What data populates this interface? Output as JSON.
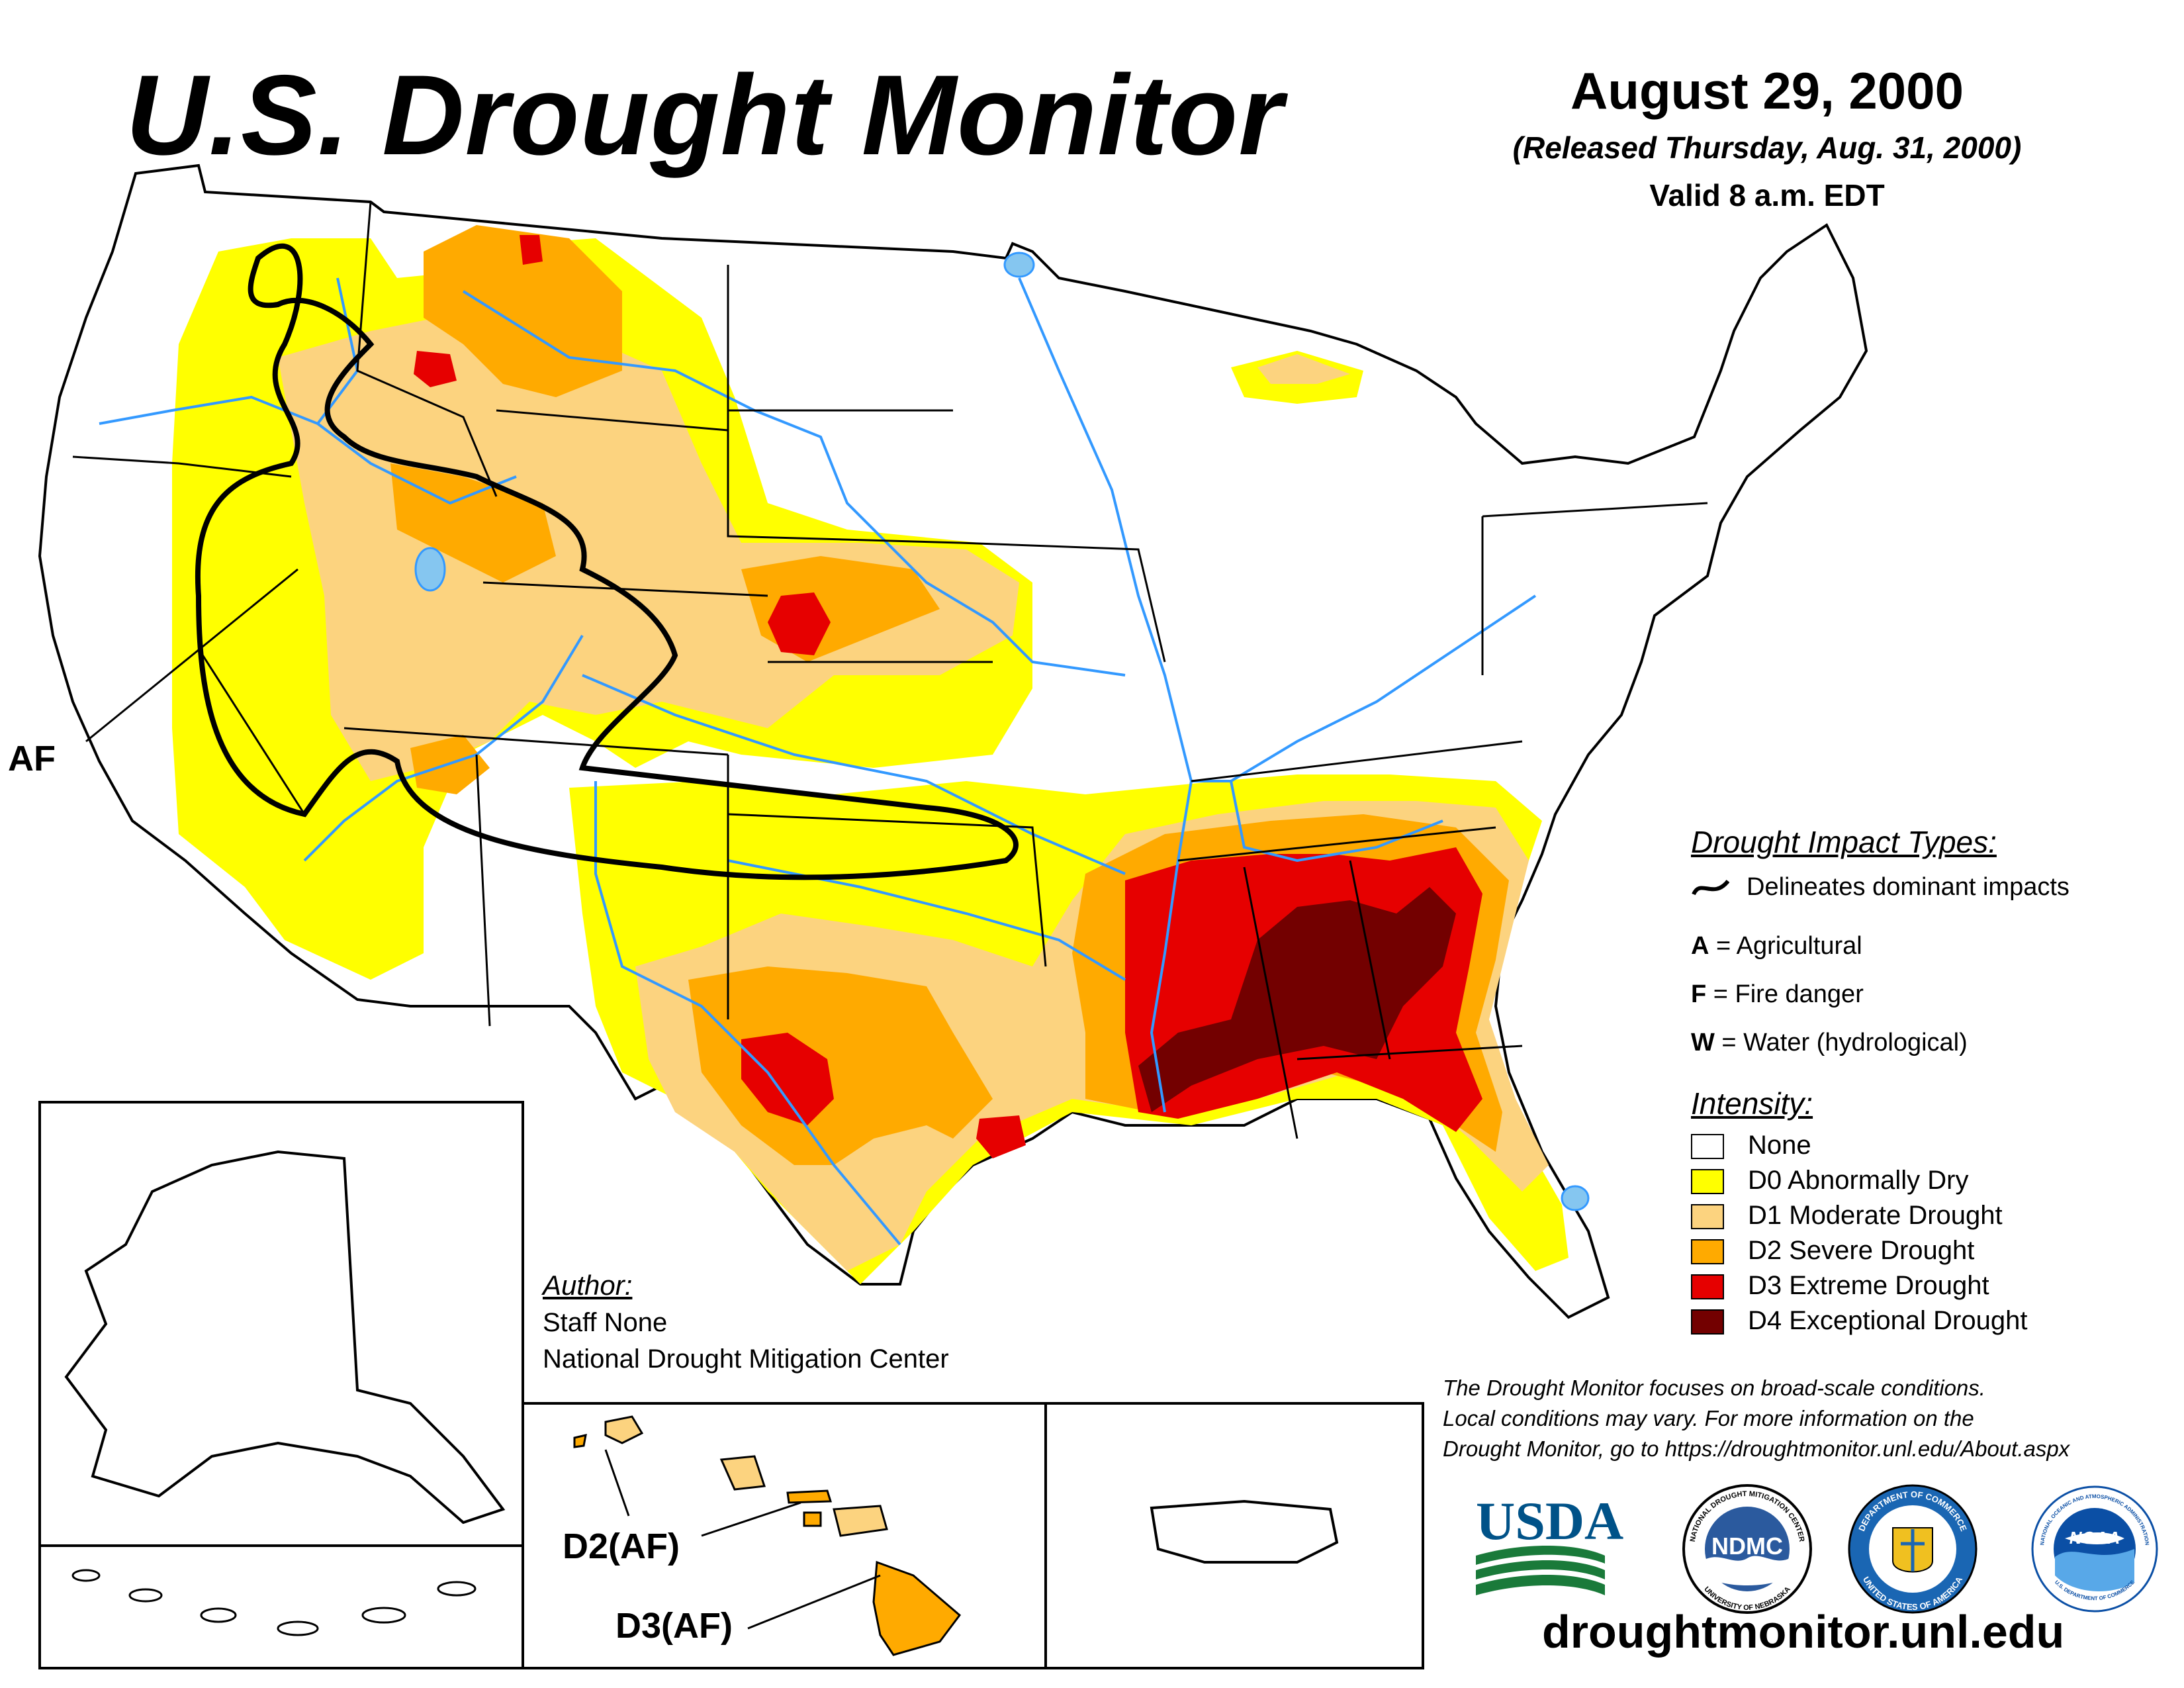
{
  "header": {
    "title": "U.S. Drought Monitor",
    "date": "August 29, 2000",
    "released": "(Released Thursday, Aug. 31, 2000)",
    "valid": "Valid 8 a.m. EDT"
  },
  "map_labels": {
    "west": "AF",
    "hawaii_d2": "D2(AF)",
    "hawaii_d3": "D3(AF)"
  },
  "legend": {
    "impact_heading": "Drought Impact Types:",
    "delineates": "Delineates dominant impacts",
    "impacts": [
      {
        "key": "A",
        "text": " = Agricultural"
      },
      {
        "key": "F",
        "text": " = Fire danger"
      },
      {
        "key": "W",
        "text": " = Water (hydrological)"
      }
    ],
    "intensity_heading": "Intensity:",
    "intensity": [
      {
        "label": "None",
        "color": "#ffffff"
      },
      {
        "label": "D0 Abnormally Dry",
        "color": "#ffff00"
      },
      {
        "label": "D1 Moderate Drought",
        "color": "#fcd37f"
      },
      {
        "label": "D2 Severe Drought",
        "color": "#ffaa00"
      },
      {
        "label": "D3 Extreme Drought",
        "color": "#e60000"
      },
      {
        "label": "D4 Exceptional Drought",
        "color": "#730000"
      }
    ]
  },
  "author": {
    "heading": "Author:",
    "name": "Staff None",
    "org": "National Drought Mitigation Center"
  },
  "disclaimer": [
    "The Drought Monitor focuses on broad-scale conditions.",
    "Local conditions may vary. For more information on the",
    "Drought Monitor, go to https://droughtmonitor.unl.edu/About.aspx"
  ],
  "logos": {
    "usda": "USDA",
    "ndmc": "NDMC",
    "ndmc_ring_top": "NATIONAL DROUGHT MITIGATION CENTER",
    "ndmc_ring_bottom": "UNIVERSITY OF NEBRASKA",
    "commerce_ring_top": "DEPARTMENT OF COMMERCE",
    "commerce_ring_bottom": "UNITED STATES OF AMERICA",
    "noaa": "NOAA",
    "noaa_ring_top": "NATIONAL OCEANIC AND ATMOSPHERIC ADMINISTRATION",
    "noaa_ring_bottom": "U.S. DEPARTMENT OF COMMERCE"
  },
  "website": "droughtmonitor.unl.edu",
  "colors": {
    "none": "#ffffff",
    "d0": "#ffff00",
    "d1": "#fcd37f",
    "d2": "#ffaa00",
    "d3": "#e60000",
    "d4": "#730000",
    "water": "#3399ff",
    "usda_blue": "#005288",
    "usda_green": "#1a7a3a",
    "ndmc_blue": "#2b5a9e",
    "commerce_blue": "#1a66b3",
    "noaa_blue": "#0b4fa5"
  }
}
